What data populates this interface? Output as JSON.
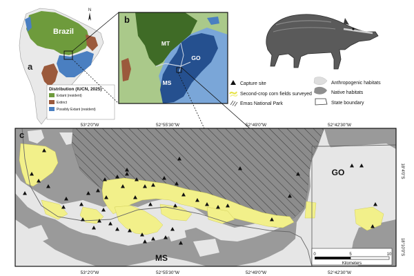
{
  "panel_a": {
    "letter": "a",
    "country_label": "Brazil",
    "north_label": "N",
    "legend": {
      "title": "Distribution (IUCN, 2025)",
      "items": [
        {
          "label": "Extant (resident)",
          "color": "#6e9b3c"
        },
        {
          "label": "Extinct",
          "color": "#9b5a3c"
        },
        {
          "label": "Possibly Extant (resident)",
          "color": "#4a7fc1"
        }
      ]
    }
  },
  "panel_b": {
    "letter": "b",
    "state_labels": [
      "MT",
      "GO",
      "MS"
    ]
  },
  "panel_c": {
    "letter": "c",
    "state_labels": [
      "GO",
      "MS"
    ],
    "lon_ticks": [
      "53°2'0\"W",
      "52°55'30\"W",
      "52°49'0\"W",
      "52°42'30\"W"
    ],
    "lat_ticks": [
      "18°4'0\"S",
      "18°10'0\"S"
    ],
    "scalebar": {
      "ticks": [
        "0",
        "5",
        "10"
      ],
      "unit": "Kilometers"
    }
  },
  "main_legend": {
    "items": [
      {
        "label": "Capture site",
        "symbol": "triangle-icon"
      },
      {
        "label": "Second-crop corn fields surveyed",
        "symbol": "corn-fields-swatch"
      },
      {
        "label": "Emas National Park",
        "symbol": "hatch-swatch"
      },
      {
        "label": "Anthropogenic habitats",
        "symbol": "light-gray-swatch"
      },
      {
        "label": "Native habitats",
        "symbol": "dark-gray-swatch"
      },
      {
        "label": "State boundary",
        "symbol": "outline-swatch"
      }
    ]
  },
  "colors": {
    "extant": "#6e9b3c",
    "extinct": "#9b5a3c",
    "possibly_extant": "#4a7fc1",
    "mt_dark": "#3f6b26",
    "ms_go_blue": "#25508f",
    "corn": "#f2f08a",
    "native": "#9a9a9a",
    "anthropogenic": "#e6e6e6"
  }
}
